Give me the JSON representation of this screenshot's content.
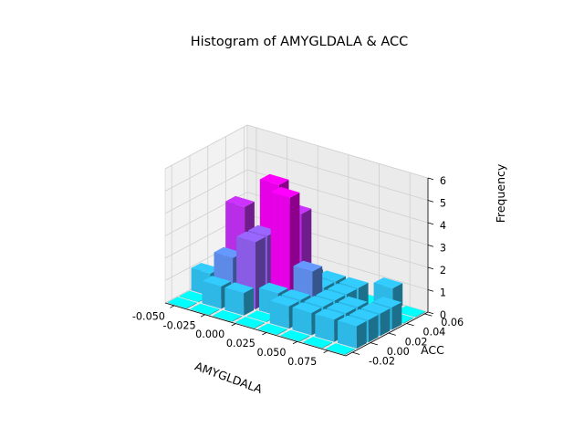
{
  "chart_data": {
    "type": "bar3d",
    "title": "Histogram of AMYGLDALA & ACC",
    "xlabel": "AMYGLDALA",
    "ylabel": "ACC",
    "zlabel": "Frequency",
    "x_ticks": [
      "-0.050",
      "-0.025",
      "0.000",
      "0.025",
      "0.050",
      "0.075"
    ],
    "y_ticks": [
      "-0.02",
      "0.00",
      "0.02",
      "0.04",
      "0.06"
    ],
    "z_ticks": [
      "0",
      "1",
      "2",
      "3",
      "4",
      "5",
      "6"
    ],
    "zlim": [
      0,
      6
    ],
    "x_bin_centers": [
      -0.05,
      -0.0313,
      -0.0125,
      0.0063,
      0.025,
      0.0438,
      0.0625,
      0.0813
    ],
    "y_bin_centers": [
      -0.0275,
      -0.0125,
      0.0025,
      0.0175,
      0.0325,
      0.0475,
      0.0625
    ],
    "frequencies": [
      [
        0,
        0,
        0,
        0,
        0,
        0,
        0,
        0
      ],
      [
        0,
        1,
        1,
        0,
        1,
        1,
        1,
        1
      ],
      [
        1,
        2,
        3,
        1,
        1,
        1,
        1,
        1
      ],
      [
        0,
        4,
        3,
        5,
        2,
        1,
        1,
        1
      ],
      [
        0,
        1,
        5,
        4,
        1,
        1,
        0,
        1
      ],
      [
        1,
        0,
        0,
        1,
        1,
        1,
        0,
        0
      ],
      [
        0,
        0,
        0,
        0,
        0,
        0,
        1,
        0
      ]
    ],
    "colormap": "cool",
    "colors": {
      "low": "#00ffff",
      "high": "#ff00ff"
    },
    "grid": true
  }
}
